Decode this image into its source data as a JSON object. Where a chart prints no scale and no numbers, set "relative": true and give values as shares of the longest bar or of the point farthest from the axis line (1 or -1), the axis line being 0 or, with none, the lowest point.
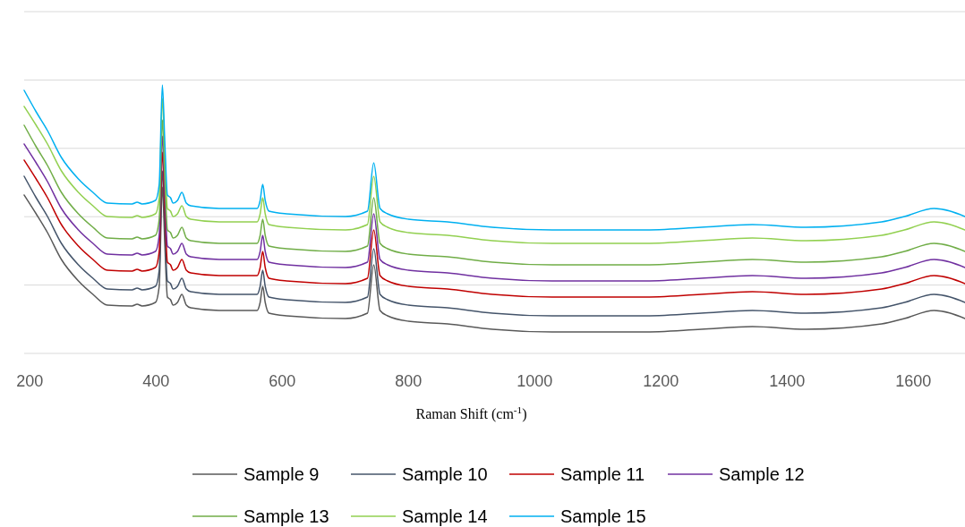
{
  "chart_data": {
    "type": "line",
    "relative": true,
    "xlabel": "Raman Shift (cm$^{-1}$)",
    "x": [
      191,
      210,
      228,
      250,
      277,
      300,
      323,
      362,
      370,
      378,
      399,
      405,
      410,
      414,
      418,
      423,
      427,
      434,
      441,
      448,
      455,
      500,
      560,
      565,
      569,
      573,
      579,
      607,
      700,
      735,
      745,
      755,
      767,
      800,
      862,
      933,
      1028,
      1170,
      1264,
      1345,
      1430,
      1550,
      1586,
      1633,
      1682
    ],
    "xlim": [
      191,
      1682
    ],
    "xticks": [
      200,
      400,
      600,
      800,
      1000,
      1200,
      1400,
      1600
    ],
    "grid": "y",
    "legend": "bottom",
    "line_style": "solid",
    "series": [
      {
        "name": "Sample 9",
        "color": "#595959",
        "values": [
          0.59,
          0.52,
          0.45,
          0.35,
          0.27,
          0.22,
          0.18,
          0.177,
          0.183,
          0.177,
          0.19,
          0.25,
          0.62,
          0.4,
          0.21,
          0.2,
          0.18,
          0.19,
          0.22,
          0.18,
          0.17,
          0.16,
          0.16,
          0.19,
          0.25,
          0.19,
          0.15,
          0.14,
          0.13,
          0.15,
          0.33,
          0.16,
          0.14,
          0.12,
          0.11,
          0.09,
          0.08,
          0.08,
          0.09,
          0.1,
          0.09,
          0.11,
          0.13,
          0.16,
          0.13
        ]
      },
      {
        "name": "Sample 10",
        "color": "#44546a",
        "values": [
          0.66,
          0.58,
          0.51,
          0.41,
          0.33,
          0.28,
          0.24,
          0.237,
          0.243,
          0.237,
          0.25,
          0.31,
          0.68,
          0.46,
          0.27,
          0.26,
          0.24,
          0.25,
          0.28,
          0.24,
          0.23,
          0.22,
          0.22,
          0.25,
          0.31,
          0.25,
          0.21,
          0.2,
          0.19,
          0.21,
          0.39,
          0.22,
          0.2,
          0.18,
          0.17,
          0.15,
          0.14,
          0.14,
          0.15,
          0.16,
          0.15,
          0.17,
          0.19,
          0.22,
          0.19
        ]
      },
      {
        "name": "Sample 11",
        "color": "#c00000",
        "values": [
          0.72,
          0.65,
          0.58,
          0.48,
          0.4,
          0.35,
          0.31,
          0.307,
          0.313,
          0.307,
          0.32,
          0.38,
          0.75,
          0.53,
          0.34,
          0.33,
          0.31,
          0.32,
          0.35,
          0.31,
          0.3,
          0.29,
          0.29,
          0.32,
          0.38,
          0.32,
          0.28,
          0.27,
          0.26,
          0.28,
          0.46,
          0.29,
          0.27,
          0.25,
          0.24,
          0.22,
          0.21,
          0.21,
          0.22,
          0.23,
          0.22,
          0.24,
          0.26,
          0.29,
          0.26
        ]
      },
      {
        "name": "Sample 12",
        "color": "#7030a0",
        "values": [
          0.78,
          0.71,
          0.64,
          0.54,
          0.46,
          0.41,
          0.37,
          0.367,
          0.373,
          0.367,
          0.38,
          0.44,
          0.81,
          0.59,
          0.4,
          0.39,
          0.37,
          0.38,
          0.41,
          0.37,
          0.36,
          0.35,
          0.35,
          0.38,
          0.44,
          0.38,
          0.34,
          0.33,
          0.32,
          0.34,
          0.52,
          0.35,
          0.33,
          0.31,
          0.3,
          0.28,
          0.27,
          0.27,
          0.28,
          0.29,
          0.28,
          0.3,
          0.32,
          0.35,
          0.32
        ]
      },
      {
        "name": "Sample 13",
        "color": "#70ad47",
        "values": [
          0.85,
          0.77,
          0.7,
          0.6,
          0.52,
          0.47,
          0.43,
          0.427,
          0.433,
          0.427,
          0.44,
          0.5,
          0.87,
          0.65,
          0.46,
          0.45,
          0.43,
          0.44,
          0.47,
          0.43,
          0.42,
          0.41,
          0.41,
          0.44,
          0.5,
          0.44,
          0.4,
          0.39,
          0.38,
          0.4,
          0.58,
          0.41,
          0.39,
          0.37,
          0.36,
          0.34,
          0.33,
          0.33,
          0.34,
          0.35,
          0.34,
          0.36,
          0.38,
          0.41,
          0.38
        ]
      },
      {
        "name": "Sample 14",
        "color": "#92d050",
        "values": [
          0.92,
          0.85,
          0.78,
          0.68,
          0.6,
          0.55,
          0.51,
          0.507,
          0.513,
          0.507,
          0.52,
          0.58,
          0.95,
          0.73,
          0.54,
          0.53,
          0.51,
          0.52,
          0.55,
          0.51,
          0.5,
          0.49,
          0.49,
          0.52,
          0.58,
          0.52,
          0.48,
          0.47,
          0.46,
          0.48,
          0.66,
          0.49,
          0.47,
          0.45,
          0.44,
          0.42,
          0.41,
          0.41,
          0.42,
          0.43,
          0.42,
          0.44,
          0.46,
          0.49,
          0.46
        ]
      },
      {
        "name": "Sample 15",
        "color": "#00b0f0",
        "values": [
          0.98,
          0.9,
          0.83,
          0.73,
          0.65,
          0.6,
          0.56,
          0.557,
          0.563,
          0.557,
          0.57,
          0.63,
          1.0,
          0.78,
          0.59,
          0.58,
          0.56,
          0.57,
          0.6,
          0.56,
          0.55,
          0.54,
          0.54,
          0.57,
          0.63,
          0.57,
          0.53,
          0.52,
          0.51,
          0.53,
          0.71,
          0.54,
          0.52,
          0.5,
          0.49,
          0.47,
          0.46,
          0.46,
          0.47,
          0.48,
          0.47,
          0.49,
          0.51,
          0.54,
          0.51
        ]
      }
    ]
  }
}
